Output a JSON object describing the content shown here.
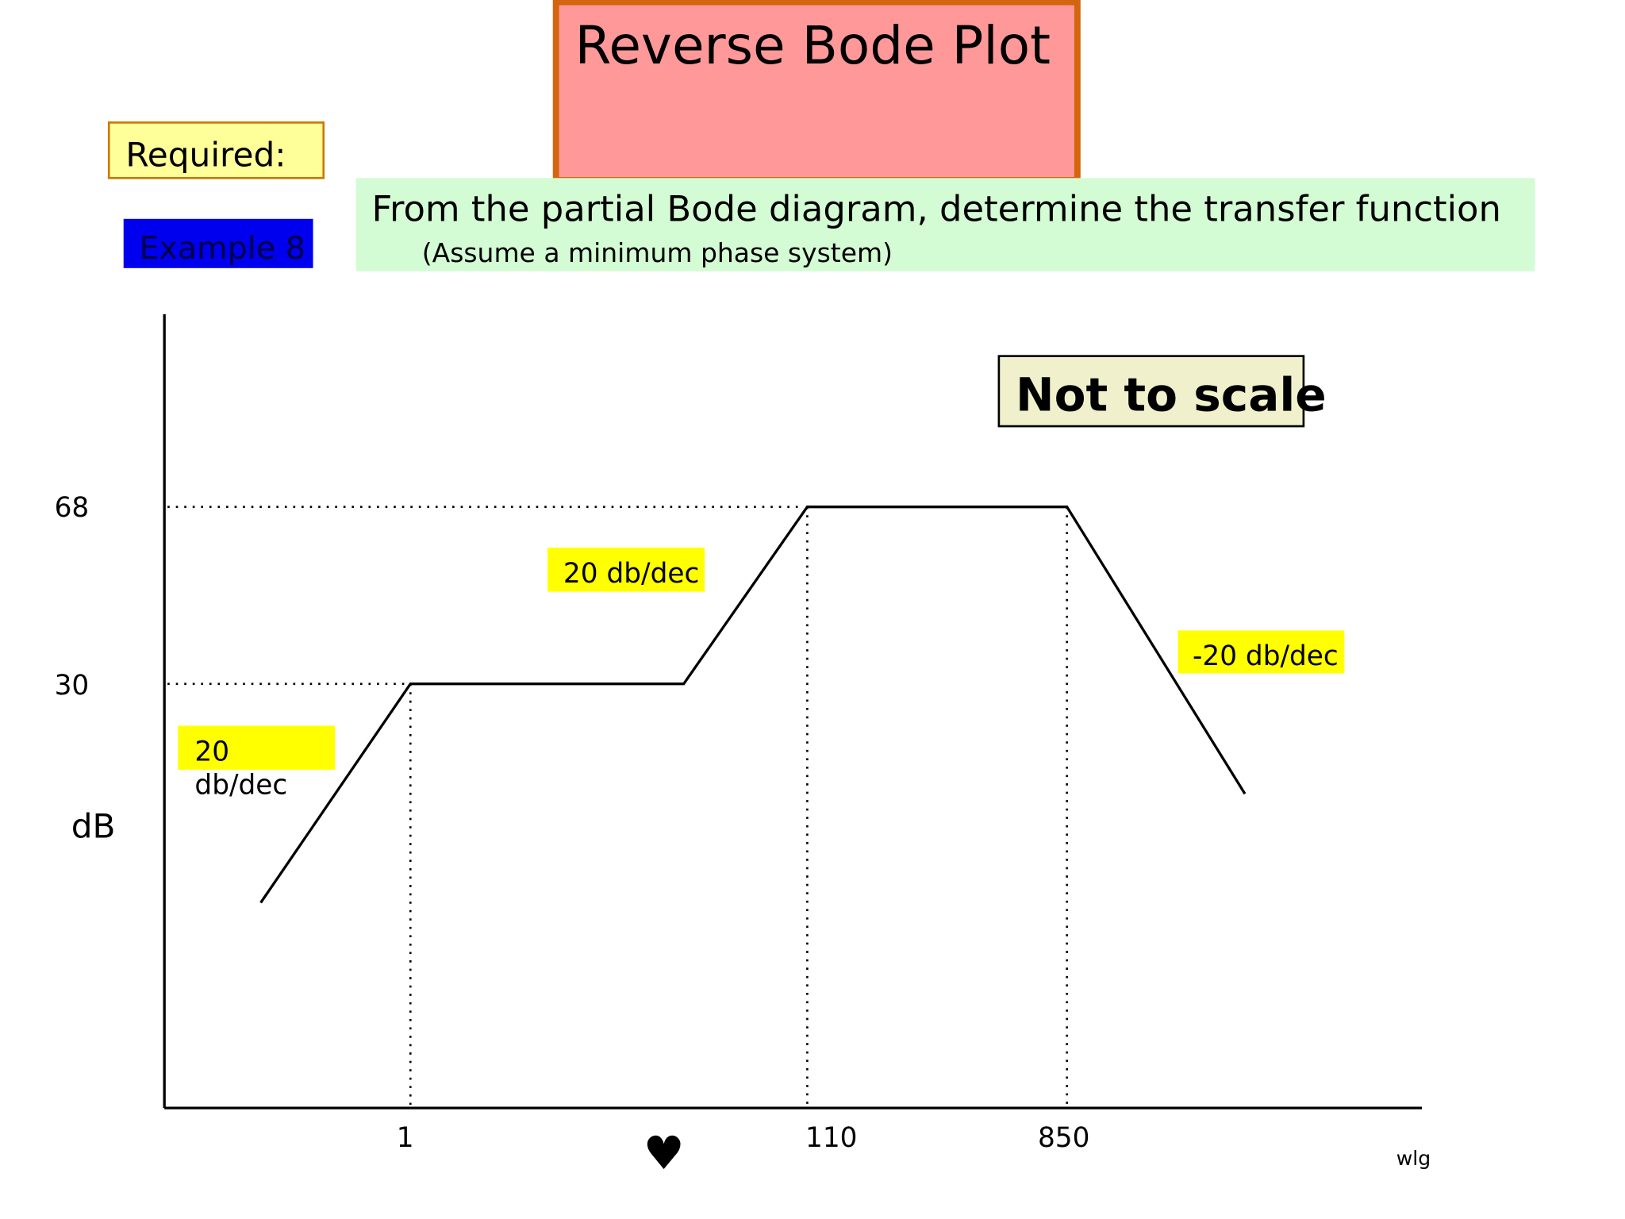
{
  "title": "Reverse Bode Plot",
  "required": "Required:",
  "example": "Example 8",
  "instruction": {
    "main": "From the partial Bode diagram, determine the transfer function",
    "note": "(Assume a minimum phase system)"
  },
  "scale_note": "Not to scale",
  "axes": {
    "y_label": "dB",
    "x_label": "wlg",
    "y_ticks": [
      "68",
      "30"
    ],
    "x_ticks": [
      "1",
      "110",
      "850"
    ]
  },
  "slope_labels": {
    "first": [
      "20",
      "db/dec"
    ],
    "second": "20 db/dec",
    "third": "-20 db/dec"
  },
  "marker": "♥"
}
